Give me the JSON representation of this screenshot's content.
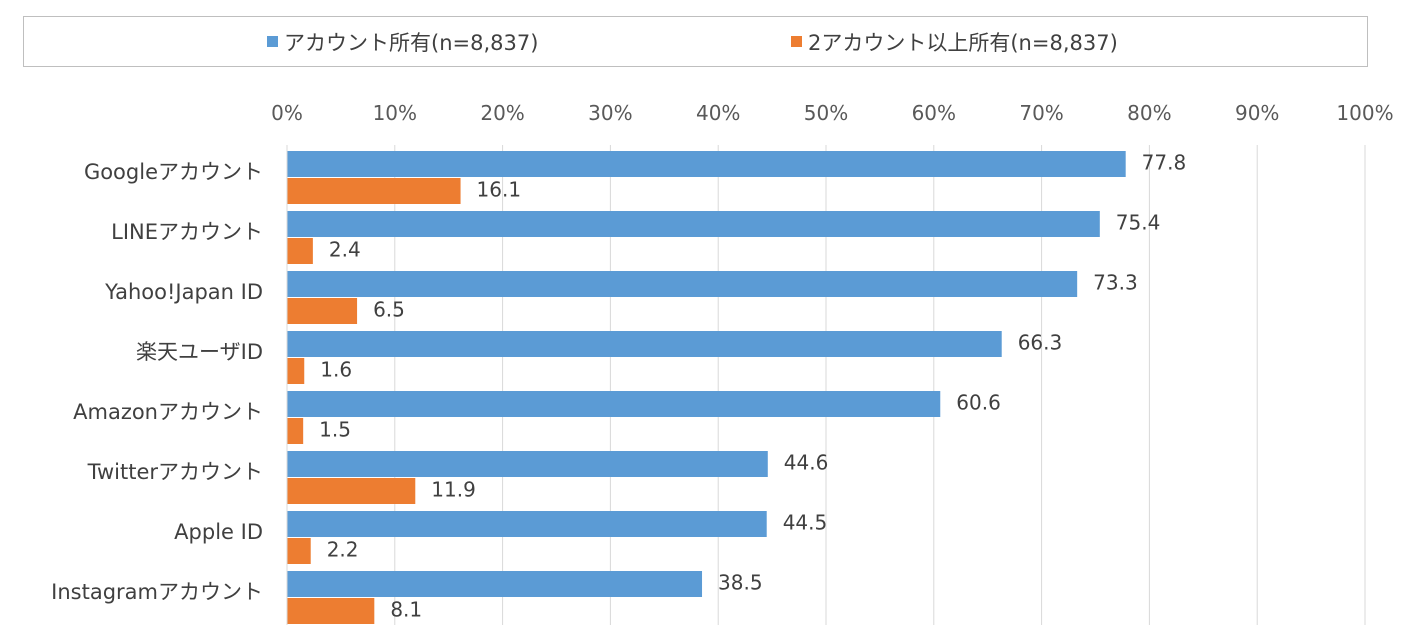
{
  "legend": {
    "position": "top",
    "items": [
      {
        "label": "アカウント所有(n=8,837)",
        "color": "#5b9bd5"
      },
      {
        "label": "2アカウント以上所有(n=8,837)",
        "color": "#ed7d31"
      }
    ]
  },
  "chart_data": {
    "type": "bar",
    "orientation": "horizontal",
    "xlim": [
      0,
      100
    ],
    "x_ticks": [
      "0%",
      "10%",
      "20%",
      "30%",
      "40%",
      "50%",
      "60%",
      "70%",
      "80%",
      "90%",
      "100%"
    ],
    "grid": true,
    "categories": [
      "Googleアカウント",
      "LINEアカウント",
      "Yahoo!Japan ID",
      "楽天ユーザID",
      "Amazonアカウント",
      "Twitterアカウント",
      "Apple ID",
      "Instagramアカウント"
    ],
    "series": [
      {
        "name": "アカウント所有(n=8,837)",
        "color": "#5b9bd5",
        "values": [
          77.8,
          75.4,
          73.3,
          66.3,
          60.6,
          44.6,
          44.5,
          38.5
        ],
        "labels": [
          "77.8",
          "75.4",
          "73.3",
          "66.3",
          "60.6",
          "44.6",
          "44.5",
          "38.5"
        ]
      },
      {
        "name": "2アカウント以上所有(n=8,837)",
        "color": "#ed7d31",
        "values": [
          16.1,
          2.4,
          6.5,
          1.6,
          1.5,
          11.9,
          2.2,
          8.1
        ],
        "labels": [
          "16.1",
          "2.4",
          "6.5",
          "1.6",
          "1.5",
          "11.9",
          "2.2",
          "8.1"
        ]
      }
    ]
  }
}
